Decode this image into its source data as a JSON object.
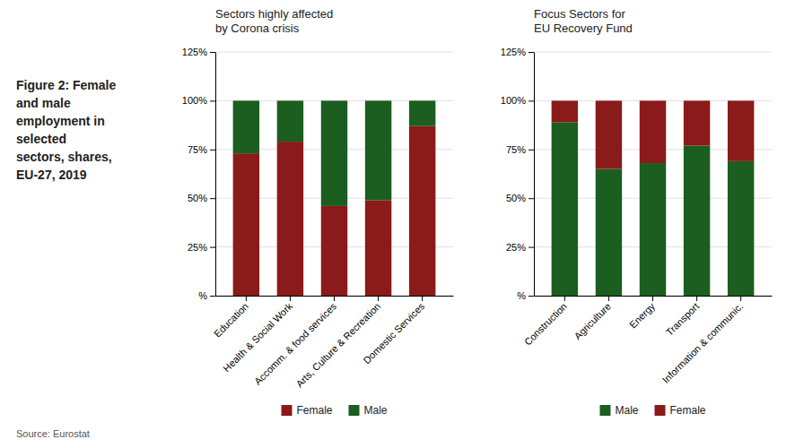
{
  "title": "Figure 2: Female\nand male\nemployment in\nselected\nsectors, shares,\nEU-27, 2019",
  "annotations": [
    "Source: Eurostat"
  ],
  "chart_data": [
    {
      "type": "bar",
      "stacked": true,
      "grid": true,
      "legend": "bottom",
      "title": "Sectors highly affected\nby Corona crisis",
      "categories": [
        "Education",
        "Health & Social Work",
        "Accomm. & food services",
        "Arts, Culture & Recreation",
        "Domestic Services"
      ],
      "series": [
        {
          "name": "Female",
          "color": "#8B1A1A",
          "values": [
            0.73,
            0.79,
            0.46,
            0.49,
            0.87
          ]
        },
        {
          "name": "Male",
          "color": "#1B5E20",
          "values": [
            0.27,
            0.21,
            0.54,
            0.51,
            0.13
          ]
        }
      ],
      "ylim": [
        0,
        1.25
      ],
      "yticks": [
        {
          "value": 0,
          "label": "%"
        },
        {
          "value": 0.25,
          "label": "25%"
        },
        {
          "value": 0.5,
          "label": "50%"
        },
        {
          "value": 0.75,
          "label": "75%"
        },
        {
          "value": 1.0,
          "label": "100%"
        },
        {
          "value": 1.25,
          "label": "125%"
        }
      ]
    },
    {
      "type": "bar",
      "stacked": true,
      "grid": true,
      "legend": "bottom",
      "title": "Focus Sectors for\nEU Recovery Fund",
      "categories": [
        "Construction",
        "Agriculture",
        "Energy",
        "Transport",
        "Information & communic."
      ],
      "series": [
        {
          "name": "Male",
          "color": "#1B5E20",
          "values": [
            0.89,
            0.65,
            0.68,
            0.77,
            0.69
          ]
        },
        {
          "name": "Female",
          "color": "#8B1A1A",
          "values": [
            0.11,
            0.35,
            0.32,
            0.23,
            0.31
          ]
        }
      ],
      "ylim": [
        0,
        1.25
      ],
      "yticks": [
        {
          "value": 0,
          "label": "%"
        },
        {
          "value": 0.25,
          "label": "25%"
        },
        {
          "value": 0.5,
          "label": "50%"
        },
        {
          "value": 0.75,
          "label": "75%"
        },
        {
          "value": 1.0,
          "label": "100%"
        },
        {
          "value": 1.25,
          "label": "125%"
        }
      ]
    }
  ]
}
